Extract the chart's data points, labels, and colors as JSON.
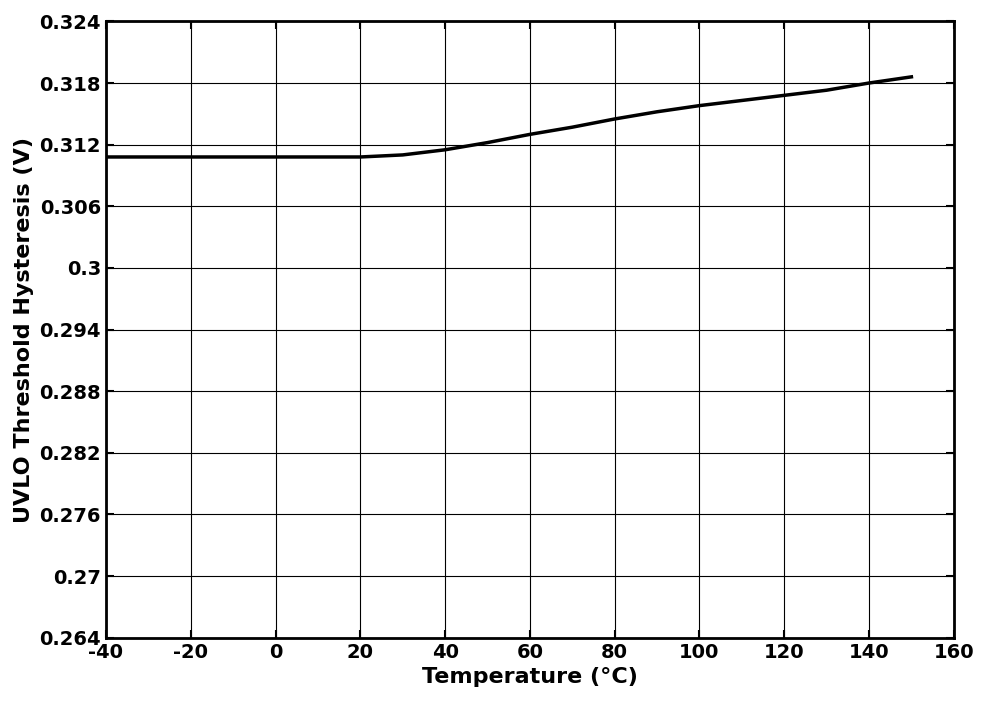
{
  "xlabel": "Temperature (°C)",
  "ylabel": "UVLO Threshold Hysteresis (V)",
  "xlim": [
    -40,
    160
  ],
  "ylim": [
    0.264,
    0.324
  ],
  "xticks": [
    -40,
    -20,
    0,
    20,
    40,
    60,
    80,
    100,
    120,
    140,
    160
  ],
  "yticks": [
    0.264,
    0.27,
    0.276,
    0.282,
    0.288,
    0.294,
    0.3,
    0.306,
    0.312,
    0.318,
    0.324
  ],
  "ytick_labels": [
    "0.264",
    "0.27",
    "0.276",
    "0.282",
    "0.288",
    "0.294",
    "0.3",
    "0.306",
    "0.312",
    "0.318",
    "0.324"
  ],
  "x_data": [
    -40,
    -30,
    -20,
    -10,
    0,
    10,
    20,
    30,
    40,
    50,
    60,
    70,
    80,
    90,
    100,
    110,
    120,
    130,
    140,
    150
  ],
  "y_data": [
    0.3108,
    0.3108,
    0.3108,
    0.3108,
    0.3108,
    0.3108,
    0.3108,
    0.311,
    0.3115,
    0.3122,
    0.313,
    0.3137,
    0.3145,
    0.3152,
    0.3158,
    0.3163,
    0.3168,
    0.3173,
    0.318,
    0.3186
  ],
  "line_color": "#000000",
  "line_width": 2.5,
  "grid_color": "#000000",
  "background_color": "#ffffff",
  "tick_fontsize": 14,
  "label_fontsize": 16,
  "font_weight": "bold"
}
